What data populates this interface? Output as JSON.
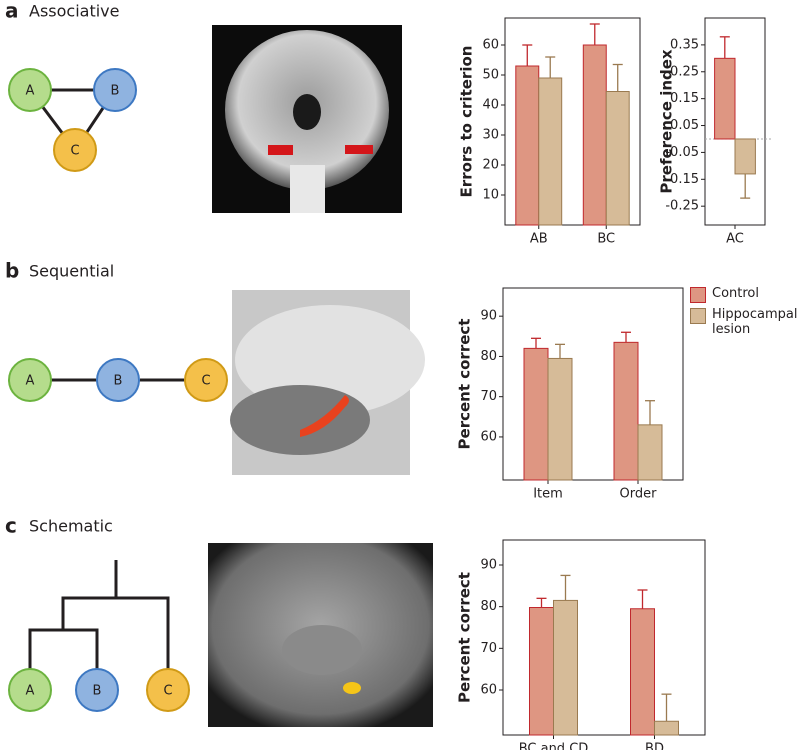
{
  "panels": [
    {
      "label": "a",
      "title": "Associative",
      "nodes": [
        "A",
        "B",
        "C"
      ]
    },
    {
      "label": "b",
      "title": "Sequential",
      "nodes": [
        "A",
        "B",
        "C"
      ]
    },
    {
      "label": "c",
      "title": "Schematic",
      "nodes": [
        "A",
        "B",
        "C"
      ]
    }
  ],
  "chart_data": [
    {
      "type": "bar",
      "y_label": "Errors to criterion",
      "categories": [
        "AB",
        "BC"
      ],
      "series": [
        {
          "name": "Control",
          "color": "#de9682",
          "values": [
            53,
            60
          ],
          "errors": [
            7,
            7
          ]
        },
        {
          "name": "Hippocampal lesion",
          "color": "#d6bb98",
          "values": [
            49,
            44.5
          ],
          "errors": [
            7,
            9
          ]
        }
      ],
      "ylim": [
        0,
        69
      ],
      "yticks": [
        10,
        20,
        30,
        40,
        50,
        60
      ]
    },
    {
      "type": "bar",
      "y_label": "Preference index",
      "categories": [
        "AC"
      ],
      "series": [
        {
          "name": "Control",
          "color": "#de9682",
          "values": [
            0.3
          ],
          "errors": [
            0.08
          ]
        },
        {
          "name": "Hippocampal lesion",
          "color": "#d6bb98",
          "values": [
            -0.13
          ],
          "errors": [
            0.09
          ]
        }
      ],
      "ylim": [
        -0.32,
        0.45
      ],
      "yticks": [
        0.35,
        0.25,
        0.15,
        0.05,
        -0.05,
        -0.15,
        -0.25
      ]
    },
    {
      "type": "bar",
      "y_label": "Percent correct",
      "categories": [
        "Item",
        "Order"
      ],
      "legend": "right",
      "series": [
        {
          "name": "Control",
          "color": "#de9682",
          "values": [
            82,
            83.5
          ],
          "errors": [
            2.5,
            2.5
          ]
        },
        {
          "name": "Hippocampal lesion",
          "color": "#d6bb98",
          "values": [
            79.5,
            63
          ],
          "errors": [
            3.5,
            6
          ]
        }
      ],
      "ylim": [
        49.3,
        97
      ],
      "yticks": [
        60,
        70,
        80,
        90
      ]
    },
    {
      "type": "bar",
      "y_label": "Percent correct",
      "categories": [
        "BC and CD",
        "BD"
      ],
      "series": [
        {
          "name": "Control",
          "color": "#de9682",
          "values": [
            79.8,
            79.5
          ],
          "errors": [
            2.2,
            4.5
          ]
        },
        {
          "name": "Hippocampal lesion",
          "color": "#d6bb98",
          "values": [
            81.5,
            52.5
          ],
          "errors": [
            6,
            6.5
          ]
        }
      ],
      "ylim": [
        49.2,
        96
      ],
      "yticks": [
        60,
        70,
        80,
        90
      ]
    }
  ]
}
